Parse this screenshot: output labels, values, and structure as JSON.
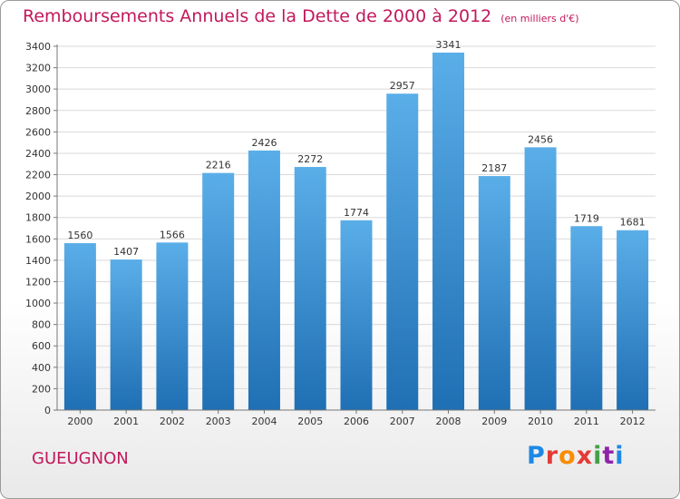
{
  "title": "Remboursements Annuels de la Dette de 2000 à 2012",
  "unit_note": "(en milliers d'€)",
  "commune": "GUEUGNON",
  "logo": {
    "text": "Proxiti",
    "letter_colors": [
      "#1e88e5",
      "#e53935",
      "#fb8c00",
      "#e53935",
      "#43a047",
      "#8e24aa",
      "#1e88e5"
    ]
  },
  "colors": {
    "bar_top": "#5aaee8",
    "bar_bottom": "#1f6fb4",
    "title": "#c2185b"
  },
  "chart_data": {
    "type": "bar",
    "title": "Remboursements Annuels de la Dette de 2000 à 2012",
    "xlabel": "",
    "ylabel": "",
    "categories": [
      "2000",
      "2001",
      "2002",
      "2003",
      "2004",
      "2005",
      "2006",
      "2007",
      "2008",
      "2009",
      "2010",
      "2011",
      "2012"
    ],
    "values": [
      1560,
      1407,
      1566,
      2216,
      2426,
      2272,
      1774,
      2957,
      3341,
      2187,
      2456,
      1719,
      1681
    ],
    "ylim": [
      0,
      3400
    ],
    "yticks": [
      0,
      200,
      400,
      600,
      800,
      1000,
      1200,
      1400,
      1600,
      1800,
      2000,
      2200,
      2400,
      2600,
      2800,
      3000,
      3200,
      3400
    ],
    "grid": true,
    "data_labels": true
  }
}
